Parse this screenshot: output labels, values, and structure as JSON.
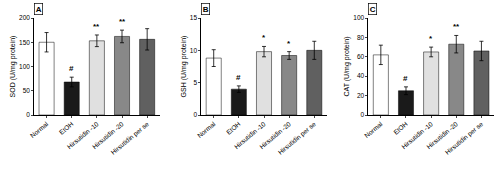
{
  "chart_data": [
    {
      "type": "bar",
      "title": "A",
      "ylabel": "SOD (U/mg protein)",
      "categories": [
        "Normal",
        "EtOH",
        "Hirsutidin -10",
        "Hirsutidin -20",
        "Hirsutidin per se"
      ],
      "values": [
        150,
        68,
        153,
        162,
        156
      ],
      "errors": [
        20,
        10,
        12,
        13,
        22
      ],
      "colors": [
        "white",
        "#1a1a1a",
        "#e0e0e0",
        "#888888",
        "#606060"
      ],
      "ylim": [
        0,
        200
      ],
      "yticks": [
        0,
        50,
        100,
        150,
        200
      ],
      "grid": false,
      "annotations": [
        {
          "x": "EtOH",
          "text": "#"
        },
        {
          "x": "Hirsutidin -10",
          "text": "**"
        },
        {
          "x": "Hirsutidin -20",
          "text": "**"
        }
      ]
    },
    {
      "type": "bar",
      "title": "B",
      "ylabel": "GSH (U/mg protein)",
      "categories": [
        "Normal",
        "EtOH",
        "Hirsutidin -10",
        "Hirsutidin -20",
        "Hirsutidin per se"
      ],
      "values": [
        8.8,
        4.0,
        9.8,
        9.2,
        10.0
      ],
      "errors": [
        1.3,
        0.5,
        0.8,
        0.6,
        1.4
      ],
      "colors": [
        "white",
        "#1a1a1a",
        "#e0e0e0",
        "#888888",
        "#606060"
      ],
      "ylim": [
        0,
        15
      ],
      "yticks": [
        0,
        5,
        10,
        15
      ],
      "grid": false,
      "annotations": [
        {
          "x": "EtOH",
          "text": "#"
        },
        {
          "x": "Hirsutidin -10",
          "text": "*"
        },
        {
          "x": "Hirsutidin -20",
          "text": "*"
        }
      ]
    },
    {
      "type": "bar",
      "title": "C",
      "ylabel": "CAT (U/mg protein)",
      "categories": [
        "Normal",
        "EtOH",
        "Hirsutidin -10",
        "Hirsutidin -20",
        "Hirsutidin per se"
      ],
      "values": [
        62,
        25,
        65,
        73,
        66
      ],
      "errors": [
        10,
        4,
        5,
        9,
        10
      ],
      "colors": [
        "white",
        "#1a1a1a",
        "#e0e0e0",
        "#888888",
        "#606060"
      ],
      "ylim": [
        0,
        100
      ],
      "yticks": [
        0,
        20,
        40,
        60,
        80,
        100
      ],
      "grid": false,
      "annotations": [
        {
          "x": "EtOH",
          "text": "#"
        },
        {
          "x": "Hirsutidin -10",
          "text": "*"
        },
        {
          "x": "Hirsutidin -20",
          "text": "**"
        }
      ]
    }
  ]
}
